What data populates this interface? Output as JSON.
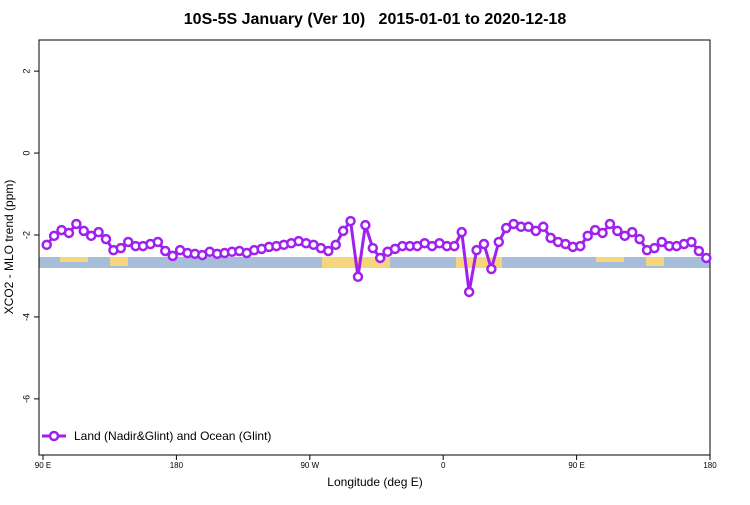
{
  "chart_data": {
    "type": "line",
    "title": "10S-5S January (Ver 10)   2015-01-01 to 2020-12-18",
    "x_label": "Longitude (deg E)",
    "y_label": "XCO2 - MLO trend (ppm)",
    "xlim": [
      87.3,
      540
    ],
    "ylim": [
      -7.37,
      2.76
    ],
    "xticks": [
      {
        "value": 90,
        "label": "90 E"
      },
      {
        "value": 180,
        "label": "180"
      },
      {
        "value": 270,
        "label": "90 W"
      },
      {
        "value": 360,
        "label": "0"
      },
      {
        "value": 450,
        "label": "90 E"
      },
      {
        "value": 540,
        "label": "180"
      }
    ],
    "yticks": [
      2,
      0,
      -2,
      -4,
      -6
    ],
    "legend_position": "bottom-left",
    "x": [
      92.5,
      97.5,
      102.5,
      107.5,
      112.5,
      117.5,
      122.5,
      127.5,
      132.5,
      137.5,
      142.5,
      147.5,
      152.5,
      157.5,
      162.5,
      167.5,
      172.5,
      177.5,
      182.5,
      187.5,
      192.5,
      197.5,
      202.5,
      207.5,
      212.5,
      217.5,
      222.5,
      227.5,
      232.5,
      237.5,
      242.5,
      247.5,
      252.5,
      257.5,
      262.5,
      267.5,
      272.5,
      277.5,
      282.5,
      287.5,
      292.5,
      297.5,
      302.5,
      307.5,
      312.5,
      317.5,
      322.5,
      327.5,
      332.5,
      337.5,
      342.5,
      347.5,
      352.5,
      357.5,
      362.5,
      367.5,
      372.5,
      377.5,
      382.5,
      387.5,
      392.5,
      397.5,
      402.5,
      407.5,
      412.5,
      417.5,
      422.5,
      427.5,
      432.5,
      437.5,
      442.5,
      447.5,
      452.5,
      457.5,
      462.5,
      467.5,
      472.5,
      477.5,
      482.5,
      487.5,
      492.5,
      497.5,
      502.5,
      507.5,
      512.5,
      517.5,
      522.5,
      527.5,
      532.5,
      537.5
    ],
    "series": [
      {
        "name": "Land (Nadir&Glint) and Ocean (Glint)",
        "color": "#a020f0",
        "values": [
          -2.24,
          -2.02,
          -1.88,
          -1.95,
          -1.73,
          -1.9,
          -2.02,
          -1.93,
          -2.1,
          -2.37,
          -2.32,
          -2.17,
          -2.27,
          -2.27,
          -2.22,
          -2.17,
          -2.39,
          -2.51,
          -2.37,
          -2.44,
          -2.46,
          -2.49,
          -2.41,
          -2.46,
          -2.44,
          -2.41,
          -2.39,
          -2.44,
          -2.37,
          -2.34,
          -2.29,
          -2.27,
          -2.24,
          -2.2,
          -2.15,
          -2.2,
          -2.24,
          -2.32,
          -2.39,
          -2.24,
          -1.9,
          -1.66,
          -3.02,
          -1.76,
          -2.32,
          -2.56,
          -2.41,
          -2.34,
          -2.27,
          -2.27,
          -2.27,
          -2.2,
          -2.27,
          -2.2,
          -2.27,
          -2.27,
          -1.93,
          -3.39,
          -2.37,
          -2.22,
          -2.83,
          -2.17,
          -1.83,
          -1.73,
          -1.8,
          -1.8,
          -1.9,
          -1.8,
          -2.07,
          -2.17,
          -2.22,
          -2.29,
          -2.27,
          -2.02,
          -1.88,
          -1.95,
          -1.73,
          -1.9,
          -2.02,
          -1.93,
          -2.1,
          -2.37,
          -2.32,
          -2.17,
          -2.27,
          -2.27,
          -2.22,
          -2.17,
          -2.39,
          -2.56
        ]
      }
    ]
  }
}
